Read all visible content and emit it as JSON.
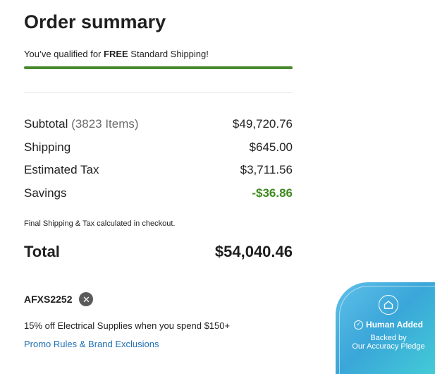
{
  "summary": {
    "title": "Order summary",
    "shipping_msg_prefix": "You’ve qualified for ",
    "shipping_msg_bold": "FREE",
    "shipping_msg_suffix": " Standard Shipping!",
    "shipping_progress": 1.0
  },
  "lines": {
    "subtotal_label": "Subtotal",
    "subtotal_items": "(3823 Items)",
    "subtotal_value": "$49,720.76",
    "shipping_label": "Shipping",
    "shipping_value": "$645.00",
    "tax_label": "Estimated Tax",
    "tax_value": "$3,711.56",
    "savings_label": "Savings",
    "savings_value": "-$36.86"
  },
  "note": "Final Shipping & Tax calculated in checkout.",
  "total": {
    "label": "Total",
    "value": "$54,040.46"
  },
  "promo": {
    "code": "AFXS2252",
    "description": "15% off Electrical Supplies when you spend $150+",
    "link": "Promo Rules & Brand Exclusions"
  },
  "badge": {
    "title": "Human Added",
    "line1": "Backed by",
    "line2": "Our Accuracy Pledge"
  },
  "colors": {
    "progress": "#4a8a2e",
    "savings": "#3f8a1f",
    "link": "#1f6fb2",
    "badge_gradient_start": "#5fc0e8",
    "badge_gradient_end": "#44d0d6"
  },
  "icons": {
    "promo_remove": "close-circle-icon",
    "badge_top": "home-icon",
    "badge_check": "check-circle-icon"
  }
}
